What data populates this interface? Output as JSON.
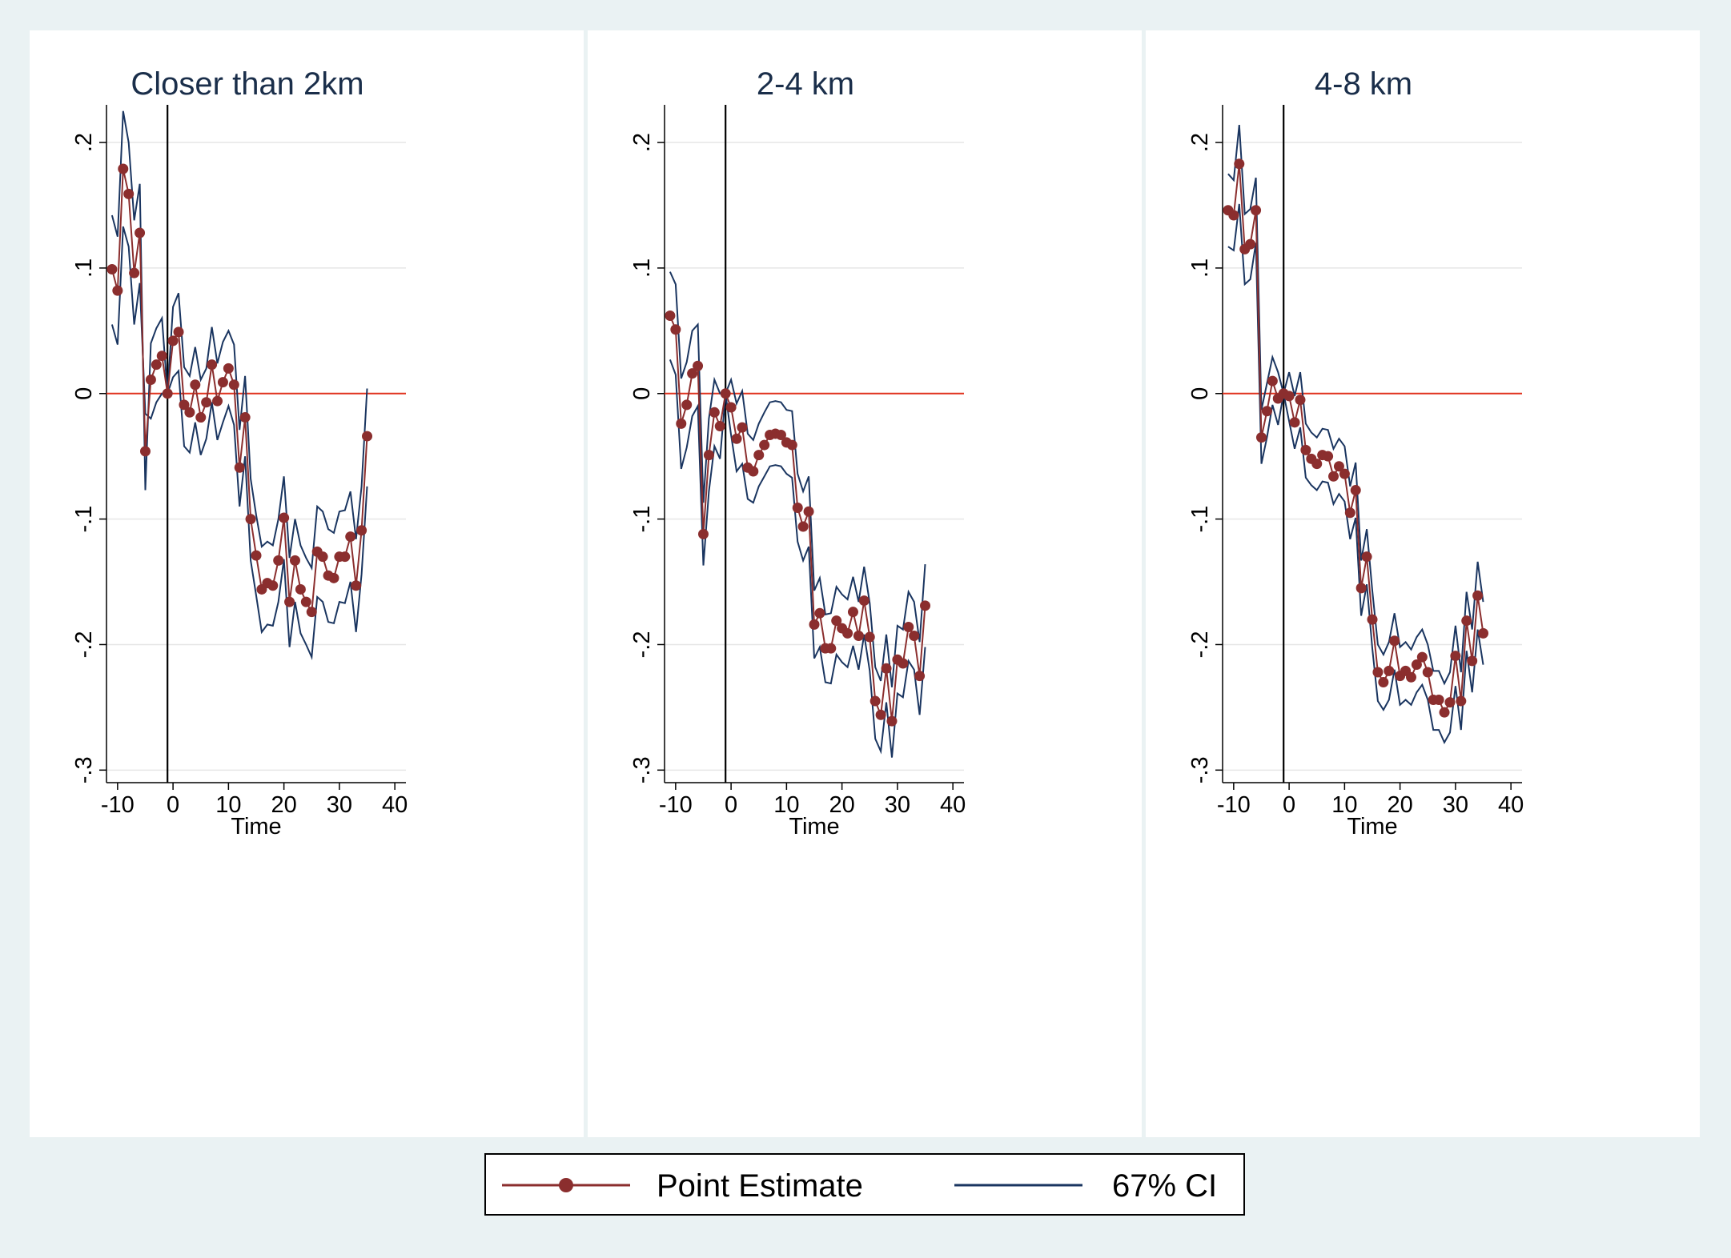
{
  "colors": {
    "point_estimate": "#8b2e2e",
    "ci": "#1a3560",
    "zero_line": "#e0321e",
    "grid": "#e6e6e6",
    "panel_bg": "#ffffff",
    "page_bg": "#eaf2f3"
  },
  "legend": {
    "point_label": "Point Estimate",
    "ci_label": "67% CI"
  },
  "chart_data": [
    {
      "type": "line",
      "title": "Closer than 2km",
      "xlabel": "Time",
      "ylabel": "",
      "xlim": [
        -12,
        42
      ],
      "ylim": [
        -0.31,
        0.23
      ],
      "xticks": [
        -10,
        0,
        10,
        20,
        30,
        40
      ],
      "xtick_labels": [
        "-10",
        "0",
        "10",
        "20",
        "30",
        "40"
      ],
      "yticks": [
        0.2,
        0.1,
        0,
        -0.1,
        -0.2,
        -0.3
      ],
      "ytick_labels": [
        ".2",
        ".1",
        "0",
        "-.1",
        "-.2",
        "-.3"
      ],
      "vline_x": -1,
      "hline_y": 0,
      "x": [
        -11,
        -10,
        -9,
        -8,
        -7,
        -6,
        -5,
        -4,
        -3,
        -2,
        -1,
        0,
        1,
        2,
        3,
        4,
        5,
        6,
        7,
        8,
        9,
        10,
        11,
        12,
        13,
        14,
        15,
        16,
        17,
        18,
        19,
        20,
        21,
        22,
        23,
        24,
        25,
        26,
        27,
        28,
        29,
        30,
        31,
        32,
        33,
        34,
        35
      ],
      "series": [
        {
          "name": "Point Estimate",
          "values": [
            0.099,
            0.082,
            0.179,
            0.159,
            0.096,
            0.128,
            -0.046,
            0.011,
            0.023,
            0.03,
            0.0,
            0.042,
            0.049,
            -0.009,
            -0.015,
            0.007,
            -0.019,
            -0.007,
            0.023,
            -0.006,
            0.009,
            0.02,
            0.007,
            -0.059,
            -0.019,
            -0.1,
            -0.129,
            -0.156,
            -0.151,
            -0.153,
            -0.133,
            -0.099,
            -0.166,
            -0.133,
            -0.156,
            -0.166,
            -0.174,
            -0.126,
            -0.13,
            -0.145,
            -0.147,
            -0.13,
            -0.13,
            -0.114,
            -0.153,
            -0.109,
            -0.034
          ]
        },
        {
          "name": "67% CI",
          "values": [
            0.142,
            0.125,
            0.225,
            0.2,
            0.138,
            0.167,
            -0.077,
            0.04,
            0.052,
            0.06,
            0.0,
            0.069,
            0.08,
            0.021,
            0.014,
            0.037,
            0.011,
            0.02,
            0.053,
            0.024,
            0.041,
            0.05,
            0.039,
            -0.029,
            0.014,
            -0.068,
            -0.097,
            -0.122,
            -0.118,
            -0.121,
            -0.1,
            -0.066,
            -0.131,
            -0.1,
            -0.121,
            -0.131,
            -0.139,
            -0.09,
            -0.094,
            -0.108,
            -0.111,
            -0.094,
            -0.093,
            -0.078,
            -0.116,
            -0.074,
            0.004
          ]
        },
        {
          "name": "67% CI",
          "values": [
            0.055,
            0.039,
            0.133,
            0.117,
            0.055,
            0.088,
            -0.016,
            -0.02,
            -0.007,
            0.0,
            0.0,
            0.013,
            0.018,
            -0.042,
            -0.047,
            -0.023,
            -0.049,
            -0.036,
            -0.007,
            -0.037,
            -0.023,
            -0.01,
            -0.025,
            -0.09,
            -0.05,
            -0.133,
            -0.161,
            -0.19,
            -0.184,
            -0.185,
            -0.166,
            -0.132,
            -0.202,
            -0.166,
            -0.191,
            -0.2,
            -0.21,
            -0.162,
            -0.166,
            -0.182,
            -0.183,
            -0.166,
            -0.167,
            -0.15,
            -0.19,
            -0.144,
            -0.074
          ]
        }
      ]
    },
    {
      "type": "line",
      "title": "2-4 km",
      "xlabel": "Time",
      "ylabel": "",
      "xlim": [
        -12,
        42
      ],
      "ylim": [
        -0.31,
        0.23
      ],
      "xticks": [
        -10,
        0,
        10,
        20,
        30,
        40
      ],
      "xtick_labels": [
        "-10",
        "0",
        "10",
        "20",
        "30",
        "40"
      ],
      "yticks": [
        0.2,
        0.1,
        0,
        -0.1,
        -0.2,
        -0.3
      ],
      "ytick_labels": [
        ".2",
        ".1",
        "0",
        "-.1",
        "-.2",
        "-.3"
      ],
      "vline_x": -1,
      "hline_y": 0,
      "x": [
        -11,
        -10,
        -9,
        -8,
        -7,
        -6,
        -5,
        -4,
        -3,
        -2,
        -1,
        0,
        1,
        2,
        3,
        4,
        5,
        6,
        7,
        8,
        9,
        10,
        11,
        12,
        13,
        14,
        15,
        16,
        17,
        18,
        19,
        20,
        21,
        22,
        23,
        24,
        25,
        26,
        27,
        28,
        29,
        30,
        31,
        32,
        33,
        34,
        35
      ],
      "series": [
        {
          "name": "Point Estimate",
          "values": [
            0.062,
            0.051,
            -0.024,
            -0.009,
            0.016,
            0.022,
            -0.112,
            -0.049,
            -0.015,
            -0.026,
            0.0,
            -0.011,
            -0.036,
            -0.027,
            -0.059,
            -0.062,
            -0.049,
            -0.041,
            -0.033,
            -0.032,
            -0.033,
            -0.039,
            -0.041,
            -0.091,
            -0.106,
            -0.094,
            -0.184,
            -0.175,
            -0.203,
            -0.203,
            -0.181,
            -0.187,
            -0.191,
            -0.174,
            -0.193,
            -0.165,
            -0.194,
            -0.245,
            -0.256,
            -0.219,
            -0.261,
            -0.212,
            -0.215,
            -0.186,
            -0.193,
            -0.225,
            -0.169
          ]
        },
        {
          "name": "67% CI",
          "values": [
            0.097,
            0.087,
            0.012,
            0.025,
            0.05,
            0.055,
            -0.087,
            -0.02,
            0.011,
            0.0,
            0.0,
            0.011,
            -0.008,
            0.002,
            -0.032,
            -0.037,
            -0.024,
            -0.015,
            -0.007,
            -0.006,
            -0.007,
            -0.013,
            -0.014,
            -0.064,
            -0.078,
            -0.066,
            -0.157,
            -0.147,
            -0.176,
            -0.175,
            -0.154,
            -0.16,
            -0.164,
            -0.146,
            -0.166,
            -0.138,
            -0.167,
            -0.218,
            -0.229,
            -0.192,
            -0.234,
            -0.185,
            -0.188,
            -0.158,
            -0.166,
            -0.198,
            -0.136
          ]
        },
        {
          "name": "67% CI",
          "values": [
            0.027,
            0.015,
            -0.06,
            -0.043,
            -0.018,
            -0.01,
            -0.137,
            -0.078,
            -0.042,
            -0.052,
            0.0,
            -0.033,
            -0.062,
            -0.056,
            -0.084,
            -0.087,
            -0.074,
            -0.066,
            -0.058,
            -0.057,
            -0.058,
            -0.064,
            -0.067,
            -0.118,
            -0.133,
            -0.122,
            -0.211,
            -0.202,
            -0.23,
            -0.231,
            -0.208,
            -0.214,
            -0.218,
            -0.201,
            -0.22,
            -0.192,
            -0.221,
            -0.275,
            -0.285,
            -0.246,
            -0.29,
            -0.239,
            -0.242,
            -0.213,
            -0.22,
            -0.256,
            -0.202
          ]
        }
      ]
    },
    {
      "type": "line",
      "title": "4-8 km",
      "xlabel": "Time",
      "ylabel": "",
      "xlim": [
        -12,
        42
      ],
      "ylim": [
        -0.31,
        0.23
      ],
      "xticks": [
        -10,
        0,
        10,
        20,
        30,
        40
      ],
      "xtick_labels": [
        "-10",
        "0",
        "10",
        "20",
        "30",
        "40"
      ],
      "yticks": [
        0.2,
        0.1,
        0,
        -0.1,
        -0.2,
        -0.3
      ],
      "ytick_labels": [
        ".2",
        ".1",
        "0",
        "-.1",
        "-.2",
        "-.3"
      ],
      "vline_x": -1,
      "hline_y": 0,
      "x": [
        -11,
        -10,
        -9,
        -8,
        -7,
        -6,
        -5,
        -4,
        -3,
        -2,
        -1,
        0,
        1,
        2,
        3,
        4,
        5,
        6,
        7,
        8,
        9,
        10,
        11,
        12,
        13,
        14,
        15,
        16,
        17,
        18,
        19,
        20,
        21,
        22,
        23,
        24,
        25,
        26,
        27,
        28,
        29,
        30,
        31,
        32,
        33,
        34,
        35
      ],
      "series": [
        {
          "name": "Point Estimate",
          "values": [
            0.146,
            0.142,
            0.183,
            0.115,
            0.119,
            0.146,
            -0.035,
            -0.014,
            0.01,
            -0.004,
            0.0,
            -0.002,
            -0.023,
            -0.005,
            -0.045,
            -0.052,
            -0.056,
            -0.049,
            -0.05,
            -0.066,
            -0.058,
            -0.064,
            -0.095,
            -0.077,
            -0.155,
            -0.13,
            -0.18,
            -0.222,
            -0.23,
            -0.221,
            -0.197,
            -0.225,
            -0.221,
            -0.226,
            -0.216,
            -0.21,
            -0.222,
            -0.244,
            -0.244,
            -0.254,
            -0.246,
            -0.209,
            -0.245,
            -0.181,
            -0.213,
            -0.161,
            -0.191
          ]
        },
        {
          "name": "67% CI",
          "values": [
            0.175,
            0.17,
            0.214,
            0.143,
            0.147,
            0.172,
            -0.013,
            0.008,
            0.029,
            0.017,
            0.0,
            0.017,
            -0.002,
            0.017,
            -0.024,
            -0.031,
            -0.035,
            -0.028,
            -0.029,
            -0.044,
            -0.036,
            -0.042,
            -0.074,
            -0.055,
            -0.133,
            -0.108,
            -0.157,
            -0.2,
            -0.208,
            -0.198,
            -0.175,
            -0.202,
            -0.198,
            -0.204,
            -0.194,
            -0.188,
            -0.2,
            -0.221,
            -0.221,
            -0.231,
            -0.222,
            -0.185,
            -0.222,
            -0.158,
            -0.188,
            -0.134,
            -0.166
          ]
        },
        {
          "name": "67% CI",
          "values": [
            0.117,
            0.114,
            0.151,
            0.087,
            0.091,
            0.12,
            -0.056,
            -0.035,
            -0.009,
            -0.025,
            0.0,
            -0.022,
            -0.044,
            -0.027,
            -0.067,
            -0.073,
            -0.077,
            -0.07,
            -0.071,
            -0.088,
            -0.08,
            -0.086,
            -0.116,
            -0.099,
            -0.177,
            -0.152,
            -0.203,
            -0.245,
            -0.252,
            -0.244,
            -0.22,
            -0.248,
            -0.244,
            -0.248,
            -0.238,
            -0.232,
            -0.244,
            -0.268,
            -0.268,
            -0.278,
            -0.27,
            -0.233,
            -0.268,
            -0.205,
            -0.238,
            -0.188,
            -0.216
          ]
        }
      ]
    }
  ]
}
